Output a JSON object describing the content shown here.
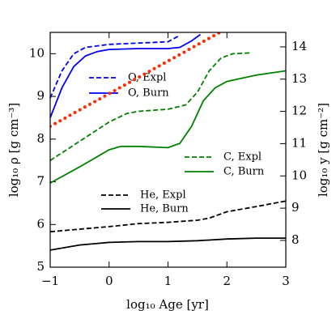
{
  "chart_data": {
    "type": "line",
    "xlabel": "log₁₀ Age [yr]",
    "ylabel": "log₁₀ ρ  [g cm⁻³]",
    "y2label": "log₁₀ y  [g cm⁻²]",
    "xlim": [
      -1,
      3
    ],
    "xticks": [
      {
        "value": -1,
        "label": "−1"
      },
      0,
      1,
      2,
      3
    ],
    "ylim": [
      5,
      10.5
    ],
    "yticks": [
      5,
      6,
      7,
      8,
      9,
      10
    ],
    "y2lim": [
      7.17,
      14.45
    ],
    "y2ticks": [
      8,
      9,
      10,
      11,
      12,
      13,
      14
    ],
    "series": [
      {
        "name": "O, Expl",
        "color": "#0000ee",
        "style": "dashed",
        "x": [
          -1,
          -0.8,
          -0.6,
          -0.4,
          0,
          0.5,
          1,
          1.2
        ],
        "values": [
          8.96,
          9.6,
          10.0,
          10.15,
          10.22,
          10.25,
          10.28,
          10.43
        ]
      },
      {
        "name": "O, Burn",
        "color": "#0000ee",
        "style": "solid",
        "x": [
          -1,
          -0.8,
          -0.6,
          -0.4,
          -0.2,
          0,
          0.5,
          1,
          1.2,
          1.4,
          1.55
        ],
        "values": [
          8.5,
          9.2,
          9.7,
          9.95,
          10.05,
          10.1,
          10.12,
          10.12,
          10.15,
          10.3,
          10.45
        ]
      },
      {
        "color": "#ff2a00",
        "style": "dotted",
        "x": [
          -1,
          1.88
        ],
        "values": [
          8.3,
          10.5
        ]
      },
      {
        "name": "C, Expl",
        "color": "#008000",
        "style": "dashed",
        "x": [
          -1,
          -0.5,
          0,
          0.3,
          0.5,
          1,
          1.3,
          1.5,
          1.7,
          1.9,
          2.1,
          2.4
        ],
        "values": [
          7.5,
          7.95,
          8.4,
          8.6,
          8.65,
          8.7,
          8.8,
          9.1,
          9.6,
          9.9,
          10.0,
          10.02
        ]
      },
      {
        "name": "C, Burn",
        "color": "#008000",
        "style": "solid",
        "x": [
          -1,
          -0.5,
          0,
          0.2,
          0.5,
          1,
          1.2,
          1.4,
          1.6,
          1.8,
          2.0,
          2.5,
          3
        ],
        "values": [
          6.97,
          7.35,
          7.75,
          7.83,
          7.83,
          7.8,
          7.9,
          8.3,
          8.9,
          9.2,
          9.35,
          9.5,
          9.6
        ]
      },
      {
        "name": "He, Expl",
        "color": "#000000",
        "style": "dashed",
        "x": [
          -1,
          0,
          0.5,
          1,
          1.5,
          1.7,
          2,
          2.5,
          3
        ],
        "values": [
          5.83,
          5.95,
          6.02,
          6.05,
          6.1,
          6.15,
          6.3,
          6.42,
          6.55
        ]
      },
      {
        "name": "He, Burn",
        "color": "#000000",
        "style": "solid",
        "x": [
          -1,
          -0.5,
          0,
          0.5,
          1,
          1.5,
          2,
          2.5,
          3
        ],
        "values": [
          5.4,
          5.52,
          5.58,
          5.6,
          5.6,
          5.62,
          5.66,
          5.68,
          5.68
        ]
      }
    ]
  }
}
